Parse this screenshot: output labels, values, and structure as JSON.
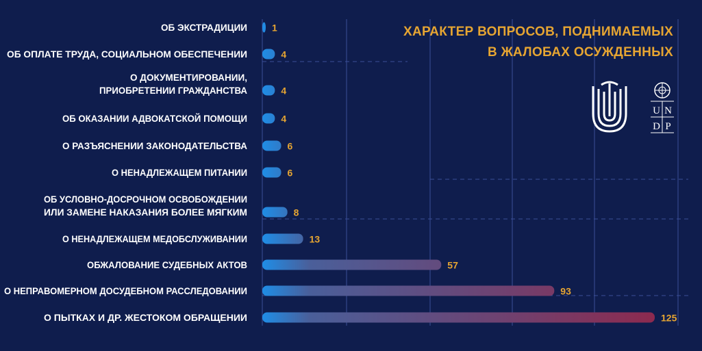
{
  "chart_data": {
    "type": "bar",
    "orientation": "horizontal",
    "title": [
      "ХАРАКТЕР ВОПРОСОВ, ПОДНИМАЕМЫХ",
      "В ЖАЛОБАХ ОСУЖДЕННЫХ"
    ],
    "categories": [
      [
        "ОБ ЭКСТРАДИЦИИ"
      ],
      [
        "ОБ ОПЛАТЕ ТРУДА, СОЦИАЛЬНОМ ОБЕСПЕЧЕНИИ"
      ],
      [
        "О ДОКУМЕНТИРОВАНИИ,",
        "ПРИОБРЕТЕНИИ ГРАЖДАНСТВА"
      ],
      [
        "ОБ ОКАЗАНИИ АДВОКАТСКОЙ ПОМОЩИ"
      ],
      [
        "О РАЗЪЯСНЕНИИ ЗАКОНОДАТЕЛЬСТВА"
      ],
      [
        "О НЕНАДЛЕЖАЩЕМ ПИТАНИИ"
      ],
      [
        "ОБ УСЛОВНО-ДОСРОЧНОМ ОСВОБОЖДЕНИИ",
        "ИЛИ ЗАМЕНЕ НАКАЗАНИЯ БОЛЕЕ МЯГКИМ"
      ],
      [
        "О НЕНАДЛЕЖАЩЕМ МЕДОБСЛУЖИВАНИИ"
      ],
      [
        "ОБЖАЛОВАНИЕ СУДЕБНЫХ АКТОВ"
      ],
      [
        "О НЕПРАВОМЕРНОМ ДОСУДЕБНОМ РАССЛЕДОВАНИИ"
      ],
      [
        "О ПЫТКАХ И ДР. ЖЕСТОКОМ ОБРАЩЕНИИ"
      ]
    ],
    "values": [
      1,
      4,
      4,
      4,
      6,
      6,
      8,
      13,
      57,
      93,
      125
    ],
    "xlim": [
      0,
      125
    ],
    "colors": {
      "background": "#0f1d4d",
      "label": "#ffffff",
      "value": "#e6a532",
      "grid": "#3b4f98",
      "bar_start": "#1f8de6",
      "bar_mid": "#4a5f9a",
      "bar_end": "#8c2a4f"
    }
  },
  "logos": {
    "left_logo_icon": "ombudsman-emblem-icon",
    "right_logo_icon": "undp-logo-icon",
    "undp_letters": [
      "U",
      "N",
      "D",
      "P"
    ]
  }
}
